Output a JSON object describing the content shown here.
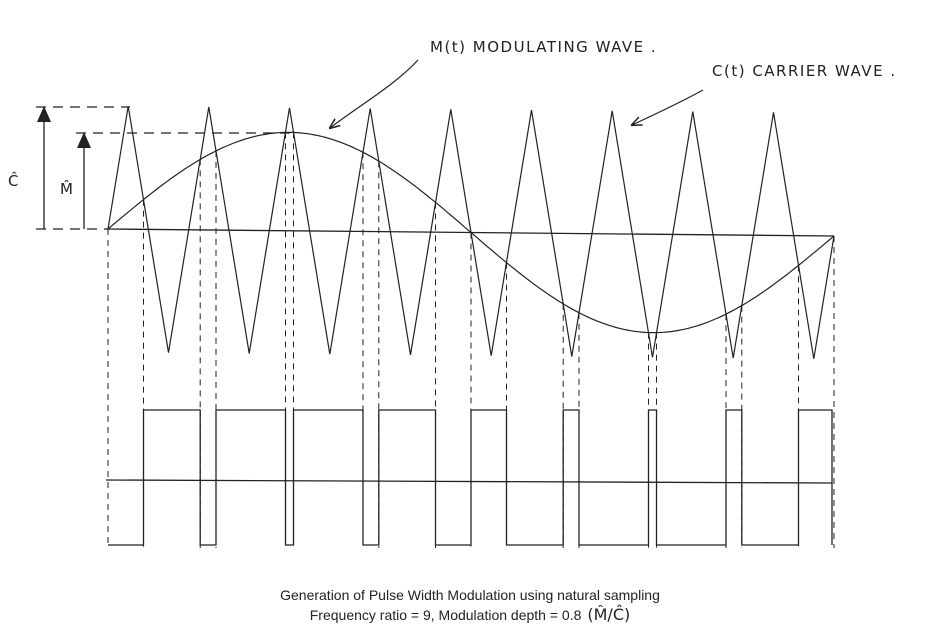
{
  "labels": {
    "carrier_amplitude": "Ĉ",
    "modulating_amplitude": "M̂",
    "modulating_wave": "M(t) MODULATING WAVE .",
    "carrier_wave": "C(t) CARRIER WAVE ."
  },
  "caption": {
    "line1": "Generation of Pulse Width Modulation using natural sampling",
    "line2": "Frequency ratio = 9, Modulation depth = 0.8",
    "line2_ratio": "(M̂/Ĉ)"
  },
  "signal": {
    "frequency_ratio": 9,
    "modulation_depth": 0.8,
    "carrier_peaks": 9
  },
  "colors": {
    "ink": "#222222",
    "background": "#ffffff"
  }
}
